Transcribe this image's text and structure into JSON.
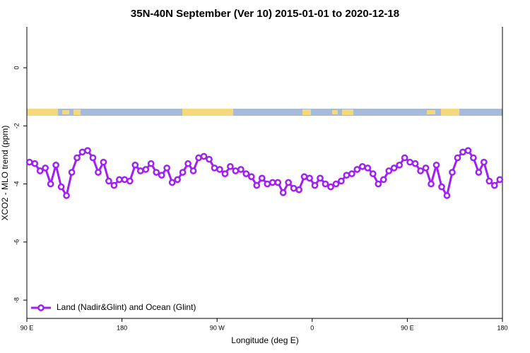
{
  "chart_data": {
    "type": "line",
    "title": "35N-40N September (Ver 10)   2015-01-01 to 2020-12-18",
    "x_label": "Longitude (deg E)",
    "y_label": "XCO2 - MLO trend (ppm)",
    "xlim": [
      90,
      540
    ],
    "xticks": [
      {
        "value": 90,
        "label": "90 E"
      },
      180,
      {
        "value": 270,
        "label": "90 W"
      },
      {
        "value": 360,
        "label": "0"
      },
      {
        "value": 450,
        "label": "90 E"
      },
      {
        "value": 540,
        "label": "180"
      }
    ],
    "ylim": [
      -8.63,
      1.41
    ],
    "yticks": [
      0,
      -2,
      -4,
      -6,
      -8
    ],
    "legend": "bottom-left",
    "series": [
      {
        "name": "Land (Nadir&Glint) and Ocean (Glint)",
        "color": "#a020f0",
        "x": [
          92.5,
          97.5,
          102.5,
          107.5,
          112.5,
          117.5,
          122.5,
          127.5,
          132.5,
          137.5,
          142.5,
          147.5,
          152.5,
          157.5,
          162.5,
          167.5,
          172.5,
          177.5,
          182.5,
          187.5,
          192.5,
          197.5,
          202.5,
          207.5,
          212.5,
          217.5,
          222.5,
          227.5,
          232.5,
          237.5,
          242.5,
          247.5,
          252.5,
          257.5,
          262.5,
          267.5,
          272.5,
          277.5,
          282.5,
          287.5,
          292.5,
          297.5,
          302.5,
          307.5,
          312.5,
          317.5,
          322.5,
          327.5,
          332.5,
          337.5,
          342.5,
          347.5,
          352.5,
          357.5,
          362.5,
          367.5,
          372.5,
          377.5,
          382.5,
          387.5,
          392.5,
          397.5,
          402.5,
          407.5,
          412.5,
          417.5,
          422.5,
          427.5,
          432.5,
          437.5,
          442.5,
          447.5,
          452.5,
          457.5,
          462.5,
          467.5,
          472.5,
          477.5,
          482.5,
          487.5,
          492.5,
          497.5,
          502.5,
          507.5,
          512.5,
          517.5,
          522.5,
          527.5,
          532.5,
          537.5
        ],
        "values": [
          -3.25,
          -3.3,
          -3.55,
          -3.45,
          -4.0,
          -3.35,
          -4.1,
          -4.4,
          -3.6,
          -3.1,
          -2.9,
          -2.85,
          -3.1,
          -3.6,
          -3.25,
          -3.9,
          -4.05,
          -3.85,
          -3.85,
          -3.9,
          -3.35,
          -3.55,
          -3.5,
          -3.3,
          -3.6,
          -3.7,
          -3.45,
          -3.95,
          -3.85,
          -3.6,
          -3.3,
          -3.55,
          -3.1,
          -3.05,
          -3.15,
          -3.45,
          -3.5,
          -3.65,
          -3.4,
          -3.55,
          -3.5,
          -3.65,
          -3.75,
          -4.05,
          -3.8,
          -4.0,
          -3.95,
          -3.95,
          -4.3,
          -3.95,
          -4.15,
          -4.2,
          -3.75,
          -3.8,
          -4.05,
          -3.8,
          -4.0,
          -4.1,
          -4.0,
          -3.9,
          -3.7,
          -3.65,
          -3.5,
          -3.4,
          -3.45,
          -3.65,
          -4.0,
          -3.85,
          -3.55,
          -3.45,
          -3.35,
          -3.1,
          -3.25,
          -3.3,
          -3.55,
          -3.45,
          -4.0,
          -3.35,
          -4.1,
          -4.4,
          -3.6,
          -3.1,
          -2.9,
          -2.85,
          -3.1,
          -3.6,
          -3.25,
          -3.9,
          -4.05,
          -3.85
        ]
      }
    ]
  }
}
